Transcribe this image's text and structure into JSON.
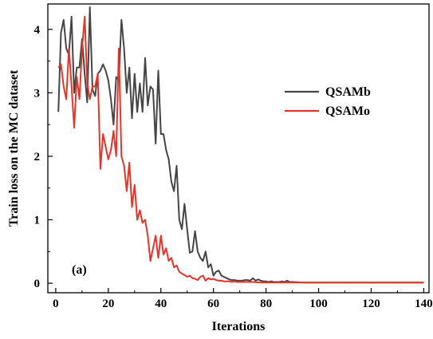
{
  "chart_data": {
    "type": "line",
    "title": "",
    "xlabel": "Iterations",
    "ylabel": "Train loss on the MC dataset",
    "xlim": [
      -3,
      142
    ],
    "ylim": [
      -0.15,
      4.4
    ],
    "xticks": [
      0,
      20,
      40,
      60,
      80,
      100,
      120,
      140
    ],
    "yticks": [
      0,
      1,
      2,
      3,
      4
    ],
    "grid": false,
    "legend": "right-center",
    "annotation": "(a)",
    "series": [
      {
        "name": "QSAMb",
        "color": "#454545",
        "x": [
          1,
          2,
          3,
          4,
          5,
          6,
          7,
          8,
          9,
          10,
          11,
          12,
          13,
          14,
          15,
          16,
          17,
          18,
          19,
          20,
          21,
          22,
          23,
          24,
          25,
          26,
          27,
          28,
          29,
          30,
          31,
          32,
          33,
          34,
          35,
          36,
          37,
          38,
          39,
          40,
          41,
          42,
          43,
          44,
          45,
          46,
          47,
          48,
          49,
          50,
          51,
          52,
          53,
          54,
          55,
          56,
          57,
          58,
          59,
          60,
          61,
          62,
          63,
          64,
          65,
          66,
          67,
          68,
          69,
          70,
          71,
          72,
          73,
          74,
          75,
          76,
          77,
          78,
          79,
          80,
          81,
          82,
          83,
          84,
          85,
          86,
          87,
          88,
          89,
          90,
          95,
          100,
          105,
          110,
          115,
          120,
          125,
          130,
          135,
          140
        ],
        "values": [
          2.7,
          3.95,
          4.15,
          3.7,
          3.6,
          4.2,
          3.0,
          3.4,
          3.4,
          3.85,
          3.3,
          2.85,
          4.35,
          3.05,
          2.95,
          3.3,
          3.35,
          3.45,
          3.35,
          3.2,
          2.9,
          2.5,
          3.25,
          3.2,
          4.15,
          3.7,
          3.0,
          3.4,
          2.6,
          3.3,
          2.7,
          3.15,
          2.7,
          3.55,
          2.8,
          3.1,
          3.05,
          2.2,
          3.35,
          2.35,
          2.35,
          2.1,
          1.95,
          1.6,
          1.45,
          1.85,
          1.0,
          0.85,
          1.25,
          0.85,
          0.48,
          0.5,
          0.82,
          0.5,
          0.4,
          0.35,
          0.5,
          0.25,
          0.3,
          0.12,
          0.18,
          0.2,
          0.12,
          0.1,
          0.08,
          0.06,
          0.05,
          0.05,
          0.04,
          0.04,
          0.04,
          0.05,
          0.05,
          0.04,
          0.08,
          0.04,
          0.06,
          0.04,
          0.03,
          0.03,
          0.02,
          0.03,
          0.02,
          0.02,
          0.02,
          0.03,
          0.02,
          0.04,
          0.02,
          0.02,
          0.01,
          0.01,
          0.01,
          0.01,
          0.01,
          0.01,
          0.01,
          0.01,
          0.01,
          0.01
        ]
      },
      {
        "name": "QSAMo",
        "color": "#e8332a",
        "x": [
          1,
          2,
          3,
          4,
          5,
          6,
          7,
          8,
          9,
          10,
          11,
          12,
          13,
          14,
          15,
          16,
          17,
          18,
          19,
          20,
          21,
          22,
          23,
          24,
          25,
          26,
          27,
          28,
          29,
          30,
          31,
          32,
          33,
          34,
          35,
          36,
          37,
          38,
          39,
          40,
          41,
          42,
          43,
          44,
          45,
          46,
          47,
          48,
          49,
          50,
          51,
          52,
          53,
          54,
          55,
          56,
          57,
          58,
          59,
          60,
          61,
          62,
          63,
          64,
          65,
          66,
          67,
          68,
          69,
          70,
          72,
          75,
          78,
          80,
          85,
          90,
          95,
          100,
          105,
          110,
          115,
          120,
          125,
          130,
          135,
          140
        ],
        "values": [
          3.4,
          3.45,
          3.1,
          2.9,
          3.7,
          3.1,
          2.45,
          3.25,
          2.9,
          3.7,
          4.2,
          3.15,
          2.9,
          3.1,
          3.1,
          3.3,
          1.8,
          2.35,
          2.15,
          1.95,
          2.1,
          2.4,
          2.0,
          3.7,
          2.0,
          1.85,
          1.45,
          1.9,
          1.2,
          1.55,
          1.0,
          1.15,
          0.95,
          1.0,
          0.75,
          0.35,
          0.55,
          0.75,
          0.4,
          0.75,
          0.45,
          0.55,
          0.35,
          0.4,
          0.25,
          0.28,
          0.18,
          0.15,
          0.13,
          0.1,
          0.12,
          0.08,
          0.07,
          0.05,
          0.1,
          0.12,
          0.04,
          0.08,
          0.06,
          0.07,
          0.05,
          0.04,
          0.04,
          0.03,
          0.03,
          0.03,
          0.02,
          0.03,
          0.02,
          0.02,
          0.02,
          0.02,
          0.01,
          0.01,
          0.01,
          0.01,
          0.01,
          0.01,
          0.01,
          0.01,
          0.01,
          0.01,
          0.01,
          0.01,
          0.01,
          0.01
        ]
      }
    ]
  }
}
